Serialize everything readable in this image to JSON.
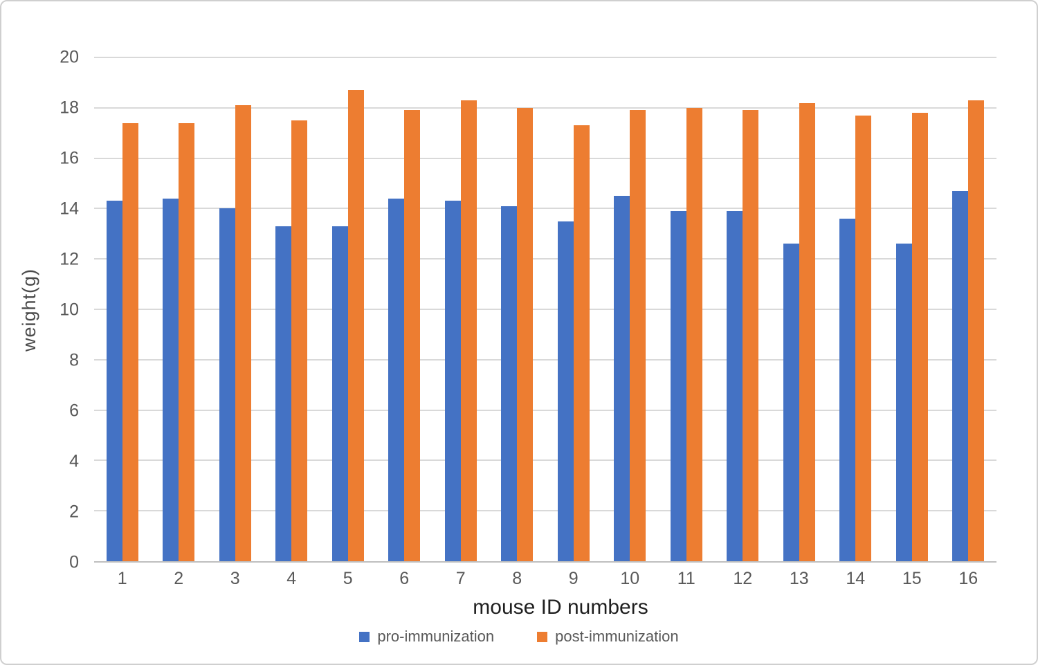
{
  "chart_data": {
    "type": "bar",
    "title": "",
    "xlabel": "mouse ID numbers",
    "ylabel": "weight(g)",
    "ylim": [
      0,
      20
    ],
    "yticks": [
      0,
      2,
      4,
      6,
      8,
      10,
      12,
      14,
      16,
      18,
      20
    ],
    "grid": true,
    "legend_position": "bottom",
    "categories": [
      "1",
      "2",
      "3",
      "4",
      "5",
      "6",
      "7",
      "8",
      "9",
      "10",
      "11",
      "12",
      "13",
      "14",
      "15",
      "16"
    ],
    "series": [
      {
        "name": "pro-immunization",
        "color": "#4472C4",
        "values": [
          14.3,
          14.4,
          14.0,
          13.3,
          13.3,
          14.4,
          14.3,
          14.1,
          13.5,
          14.5,
          13.9,
          13.9,
          12.6,
          13.6,
          12.6,
          14.7
        ]
      },
      {
        "name": "post-immunization",
        "color": "#ED7D31",
        "values": [
          17.4,
          17.4,
          18.1,
          17.5,
          18.7,
          17.9,
          18.3,
          18.0,
          17.3,
          17.9,
          18.0,
          17.9,
          18.2,
          17.7,
          17.8,
          18.3
        ]
      }
    ]
  },
  "colors": {
    "gridline": "#D9D9D9",
    "axis_line": "#BFBFBF",
    "tick_text": "#595959",
    "axis_title_text": "#1F1F1F",
    "background": "#FFFFFF",
    "frame_border": "#CFCFCF"
  }
}
